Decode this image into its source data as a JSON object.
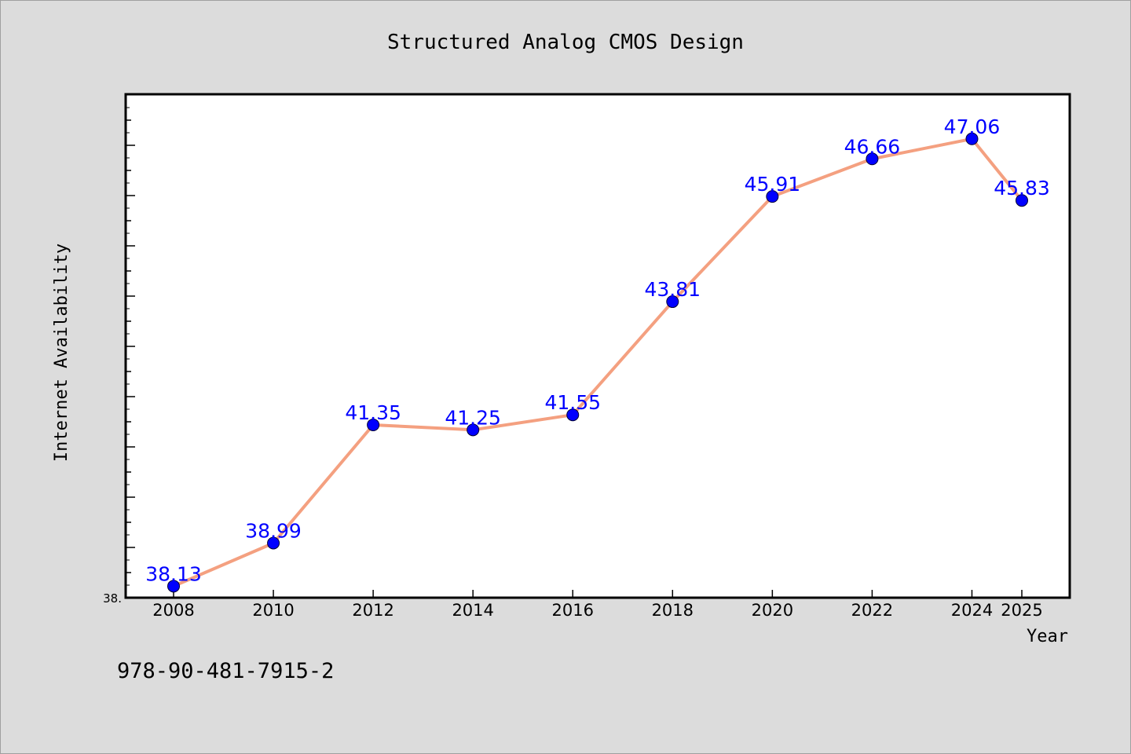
{
  "chart_data": {
    "type": "line",
    "title": "Structured Analog CMOS Design",
    "xlabel": "Year",
    "ylabel": "Internet Availability",
    "x": [
      2008,
      2010,
      2012,
      2014,
      2016,
      2018,
      2020,
      2022,
      2024,
      2025
    ],
    "x_tick_labels": [
      "2008",
      "2010",
      "2012",
      "2014",
      "2016",
      "2018",
      "2020",
      "2022",
      "2024",
      "2025"
    ],
    "values": [
      38.13,
      38.99,
      41.35,
      41.25,
      41.55,
      43.81,
      45.91,
      46.66,
      47.06,
      45.83
    ],
    "data_labels": [
      "38.13",
      "38.99",
      "41.35",
      "41.25",
      "41.55",
      "43.81",
      "45.91",
      "46.66",
      "47.06",
      "45.83"
    ],
    "y_tick_labels": [
      "38."
    ],
    "ylim": [
      37.9,
      47.95
    ],
    "grid": false,
    "line_color": "#f4a080",
    "marker_color": "#0000ff",
    "label_color": "#0000ff"
  },
  "footer": {
    "isbn": "978-90-481-7915-2"
  }
}
